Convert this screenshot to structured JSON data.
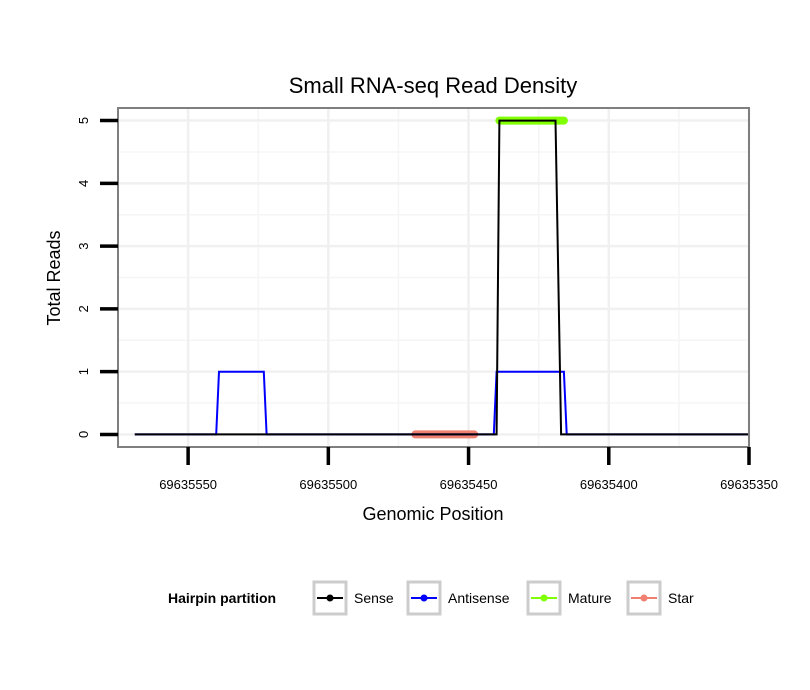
{
  "chart_data": {
    "type": "line",
    "title": "Small RNA-seq Read Density",
    "xlabel": "Genomic Position",
    "ylabel": "Total Reads",
    "xlim": [
      69635350,
      69635575
    ],
    "x_reversed": true,
    "ylim": [
      -0.2,
      5.2
    ],
    "x_ticks": [
      69635550,
      69635500,
      69635450,
      69635400,
      69635350
    ],
    "x_tick_labels": [
      "69635550",
      "69635500",
      "69635450",
      "69635400",
      "69635350"
    ],
    "y_ticks": [
      0,
      1,
      2,
      3,
      4,
      5
    ],
    "y_tick_labels": [
      "0",
      "1",
      "2",
      "3",
      "4",
      "5"
    ],
    "grid": true,
    "series": [
      {
        "name": "Sense",
        "color": "#000000",
        "style": "line",
        "x": [
          69635569,
          69635440,
          69635439,
          69635419,
          69635417,
          69635350
        ],
        "values": [
          0,
          0,
          5,
          5,
          0,
          0
        ]
      },
      {
        "name": "Antisense",
        "color": "#0000ff",
        "style": "line",
        "x": [
          69635569,
          69635540,
          69635539,
          69635523,
          69635522,
          69635441,
          69635440,
          69635416,
          69635415,
          69635350
        ],
        "values": [
          0,
          0,
          1,
          1,
          0,
          0,
          1,
          1,
          0,
          0
        ]
      },
      {
        "name": "Mature",
        "color": "#7fff00",
        "style": "thick",
        "x": [
          69635439,
          69635416
        ],
        "values": [
          5,
          5
        ]
      },
      {
        "name": "Star",
        "color": "#f08070",
        "style": "thick",
        "x": [
          69635469,
          69635448
        ],
        "values": [
          0,
          0
        ]
      }
    ],
    "legend": {
      "title": "Hairpin partition",
      "position": "bottom",
      "items": [
        {
          "label": "Sense",
          "color": "#000000"
        },
        {
          "label": "Antisense",
          "color": "#0000ff"
        },
        {
          "label": "Mature",
          "color": "#7fff00"
        },
        {
          "label": "Star",
          "color": "#f08070"
        }
      ]
    }
  }
}
